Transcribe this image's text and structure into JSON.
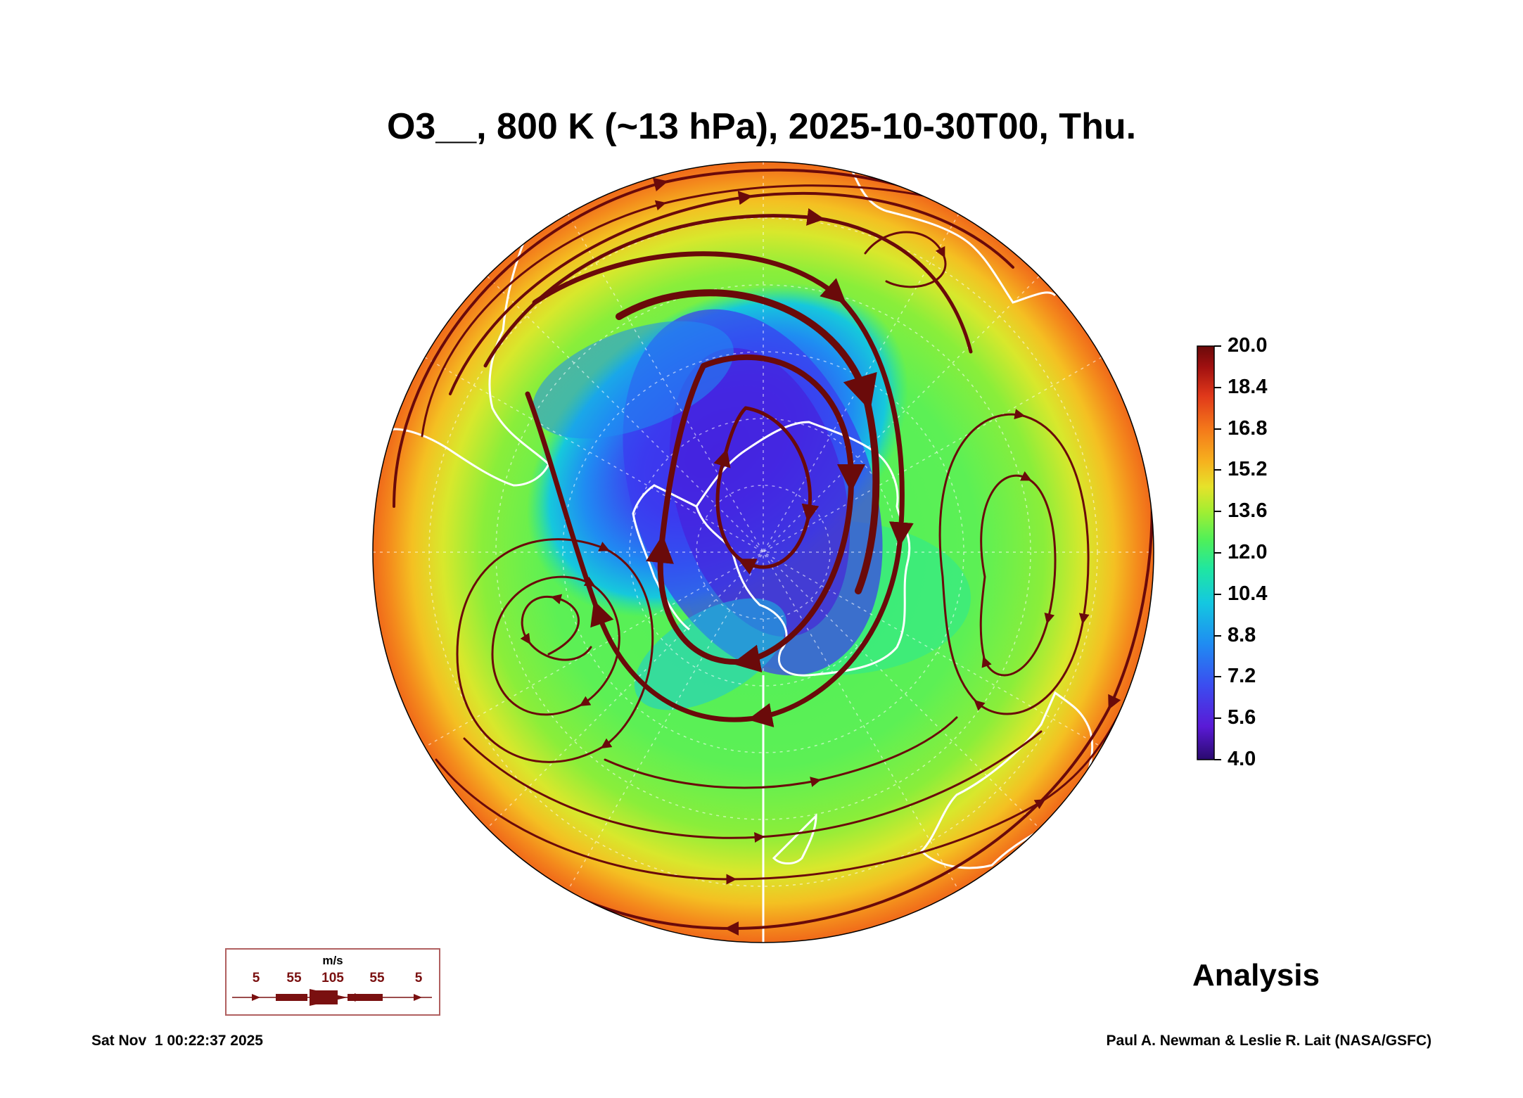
{
  "title": "O3__, 800 K (~13 hPa), 2025-10-30T00, Thu.",
  "colorbar": {
    "labels": [
      "20.0",
      "18.4",
      "16.8",
      "15.2",
      "13.6",
      "12.0",
      "10.4",
      "8.8",
      "7.2",
      "5.6",
      "4.0"
    ],
    "min": 4.0,
    "max": 20.0,
    "colors": [
      "#2a0a6e",
      "#5a1ad6",
      "#3b4df0",
      "#1f8cf2",
      "#14c8e0",
      "#1fe6a2",
      "#4ef05a",
      "#a2ee32",
      "#e6e22a",
      "#f6b21e",
      "#f4781a",
      "#e0381a",
      "#a01010",
      "#6a0a0a"
    ]
  },
  "wind_scale": {
    "unit": "m/s",
    "labels": [
      "5",
      "55",
      "105",
      "55",
      "5"
    ],
    "color": "#7a1010"
  },
  "map": {
    "projection": "orthographic, south polar",
    "streamline_color": "#6a0a0a",
    "coastline_color": "#ffffff"
  },
  "stamp": "Analysis",
  "footer": {
    "timestamp": "Sat Nov  1 00:22:37 2025",
    "credit": "Paul A. Newman & Leslie R. Lait (NASA/GSFC)"
  }
}
